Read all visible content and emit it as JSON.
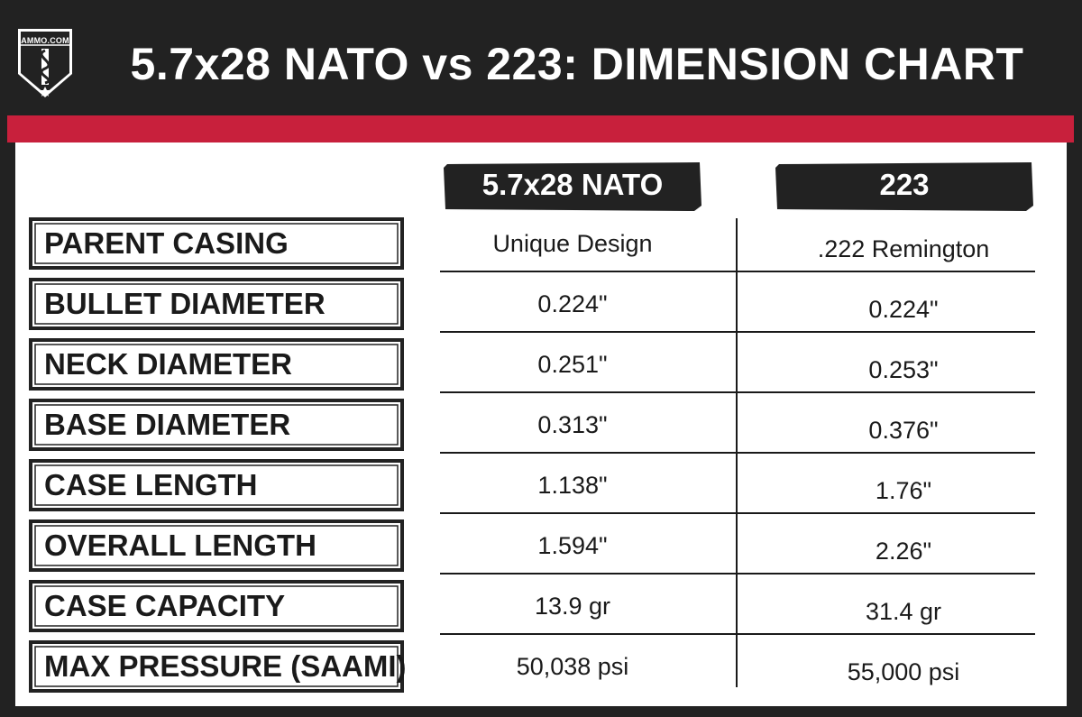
{
  "header": {
    "logo_text": "AMMO.COM",
    "title": "5.7x28 NATO vs 223: DIMENSION CHART"
  },
  "colors": {
    "background": "#222222",
    "accent": "#c8203c",
    "panel": "#ffffff",
    "text": "#1a1a1a"
  },
  "chart_data": {
    "type": "table",
    "columns": [
      "5.7x28 NATO",
      "223"
    ],
    "rows": [
      {
        "label": "PARENT CASING",
        "values": [
          "Unique Design",
          ".222 Remington"
        ]
      },
      {
        "label": "BULLET DIAMETER",
        "values": [
          "0.224\"",
          "0.224\""
        ]
      },
      {
        "label": "NECK DIAMETER",
        "values": [
          "0.251\"",
          "0.253\""
        ]
      },
      {
        "label": "BASE DIAMETER",
        "values": [
          "0.313\"",
          "0.376\""
        ]
      },
      {
        "label": "CASE LENGTH",
        "values": [
          "1.138\"",
          "1.76\""
        ]
      },
      {
        "label": "OVERALL LENGTH",
        "values": [
          "1.594\"",
          "2.26\""
        ]
      },
      {
        "label": "CASE CAPACITY",
        "values": [
          "13.9 gr",
          "31.4 gr"
        ]
      },
      {
        "label": "MAX PRESSURE (SAAMI)",
        "values": [
          "50,038 psi",
          "55,000 psi"
        ]
      }
    ]
  }
}
